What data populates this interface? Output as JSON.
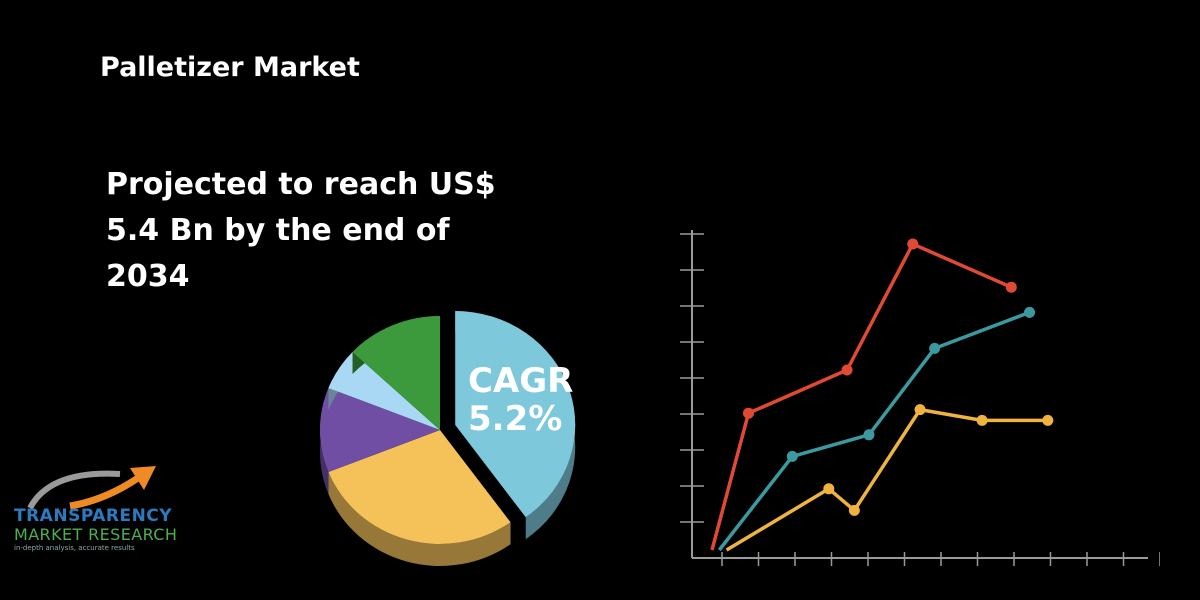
{
  "header": {
    "title": "Palletizer Market"
  },
  "headline": {
    "lines": [
      "Projected to reach US$",
      "5.4 Bn by the end of",
      "2034"
    ]
  },
  "cagr": {
    "label": "CAGR",
    "value": "5.2%"
  },
  "logo": {
    "line1": "TRANSPARENCY",
    "line2": "MARKET RESEARCH",
    "tagline": "in-depth analysis, accurate results"
  },
  "colors": {
    "background": "#000000",
    "pie_blue": "#7ec8dc",
    "pie_yellow": "#f5c25a",
    "pie_purple": "#6f4ea3",
    "pie_lightblue": "#a9d8f5",
    "pie_green": "#3c9a3c",
    "line_red": "#e04a35",
    "line_teal": "#3a9aa0",
    "line_yellow": "#f0b340",
    "axis": "#9a9a9a"
  },
  "chart_data": [
    {
      "type": "pie",
      "slices": [
        {
          "label": "CAGR 5.2%",
          "value": 40,
          "color": "#7ec8dc"
        },
        {
          "label": "",
          "value": 29,
          "color": "#f5c25a"
        },
        {
          "label": "",
          "value": 12,
          "color": "#6f4ea3"
        },
        {
          "label": "",
          "value": 6,
          "color": "#a9d8f5"
        },
        {
          "label": "",
          "value": 13,
          "color": "#3c9a3c"
        }
      ]
    },
    {
      "type": "line",
      "x": [
        0,
        1,
        2,
        3,
        4,
        5,
        6,
        7,
        8,
        9,
        10,
        11,
        12
      ],
      "ylim": [
        0,
        9
      ],
      "series": [
        {
          "color": "#e04a35",
          "points": [
            [
              0,
              0
            ],
            [
              1,
              3.8
            ],
            [
              3.7,
              5.0
            ],
            [
              5.5,
              8.5
            ],
            [
              8.2,
              7.3
            ]
          ],
          "markers": [
            false,
            true,
            true,
            true,
            true
          ]
        },
        {
          "color": "#3a9aa0",
          "points": [
            [
              0.2,
              0
            ],
            [
              2.2,
              2.6
            ],
            [
              4.3,
              3.2
            ],
            [
              6.1,
              5.6
            ],
            [
              8.7,
              6.6
            ]
          ],
          "markers": [
            false,
            true,
            true,
            true,
            true
          ]
        },
        {
          "color": "#f0b340",
          "points": [
            [
              0.4,
              0
            ],
            [
              3.2,
              1.7
            ],
            [
              3.9,
              1.1
            ],
            [
              5.7,
              3.9
            ],
            [
              7.4,
              3.6
            ],
            [
              9.2,
              3.6
            ]
          ],
          "markers": [
            false,
            true,
            true,
            true,
            true,
            true
          ]
        }
      ],
      "grid": false
    }
  ]
}
